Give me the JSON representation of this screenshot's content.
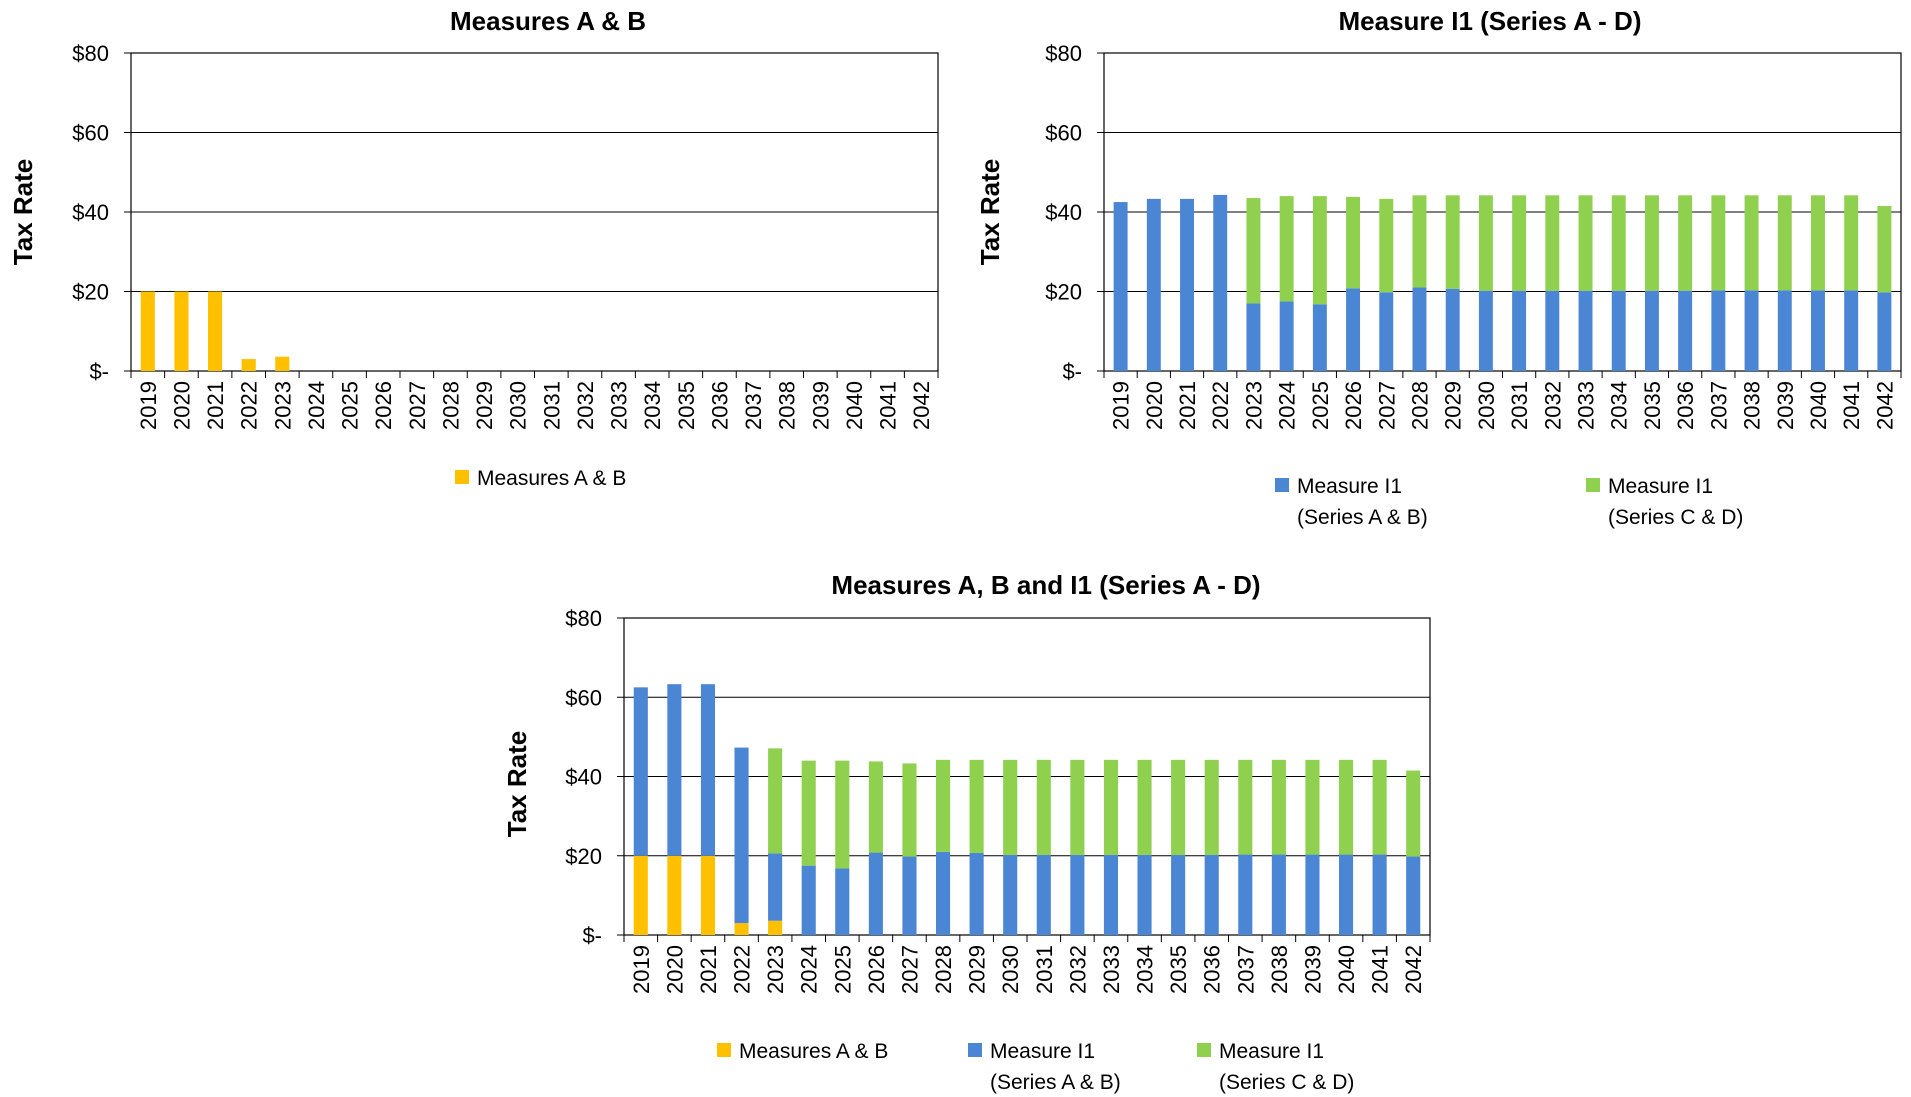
{
  "colors": {
    "measures_ab": "#FFC000",
    "i1_ab": "#4A86D4",
    "i1_cd": "#8FD14F"
  },
  "chart_data": [
    {
      "type": "bar",
      "title": "Measures A & B",
      "ylabel": "Tax Rate",
      "yticks": [
        "$80",
        "$60",
        "$40",
        "$20",
        "$-"
      ],
      "ylim": [
        0,
        80
      ],
      "categories": [
        "2019",
        "2020",
        "2021",
        "2022",
        "2023",
        "2024",
        "2025",
        "2026",
        "2027",
        "2028",
        "2029",
        "2030",
        "2031",
        "2032",
        "2033",
        "2034",
        "2035",
        "2036",
        "2037",
        "2038",
        "2039",
        "2040",
        "2041",
        "2042"
      ],
      "series": [
        {
          "name": "Measures A & B",
          "color_key": "measures_ab",
          "values": [
            20,
            20,
            20,
            3,
            3.6,
            0,
            0,
            0,
            0,
            0,
            0,
            0,
            0,
            0,
            0,
            0,
            0,
            0,
            0,
            0,
            0,
            0,
            0,
            0
          ]
        }
      ],
      "legend": {
        "position": "bottom",
        "entries": [
          {
            "line1": "Measures A & B",
            "line2": ""
          }
        ]
      }
    },
    {
      "type": "bar",
      "stacked": true,
      "title": "Measure I1 (Series A - D)",
      "ylabel": "Tax Rate",
      "yticks": [
        "$80",
        "$60",
        "$40",
        "$20",
        "$-"
      ],
      "ylim": [
        0,
        80
      ],
      "categories": [
        "2019",
        "2020",
        "2021",
        "2022",
        "2023",
        "2024",
        "2025",
        "2026",
        "2027",
        "2028",
        "2029",
        "2030",
        "2031",
        "2032",
        "2033",
        "2034",
        "2035",
        "2036",
        "2037",
        "2038",
        "2039",
        "2040",
        "2041",
        "2042"
      ],
      "series": [
        {
          "name": "Measure I1 (Series A & B)",
          "color_key": "i1_ab",
          "values": [
            42.5,
            43.3,
            43.3,
            44.3,
            17,
            17.5,
            16.8,
            20.8,
            19.8,
            21,
            20.7,
            20.2,
            20.2,
            20.2,
            20.2,
            20.2,
            20.2,
            20.2,
            20.3,
            20.3,
            20.3,
            20.3,
            20.3,
            19.8
          ]
        },
        {
          "name": "Measure I1 (Series C & D)",
          "color_key": "i1_cd",
          "values": [
            0,
            0,
            0,
            0,
            26.5,
            26.5,
            27.2,
            23,
            23.5,
            23.2,
            23.5,
            24,
            24,
            24,
            24,
            24,
            24,
            24,
            23.9,
            23.9,
            23.9,
            23.9,
            23.9,
            21.7
          ]
        }
      ],
      "legend": {
        "position": "bottom",
        "entries": [
          {
            "line1": "Measure I1",
            "line2": "(Series A & B)"
          },
          {
            "line1": "Measure I1",
            "line2": "(Series C & D)"
          }
        ]
      }
    },
    {
      "type": "bar",
      "stacked": true,
      "title": "Measures A, B and I1 (Series A - D)",
      "ylabel": "Tax Rate",
      "yticks": [
        "$80",
        "$60",
        "$40",
        "$20",
        "$-"
      ],
      "ylim": [
        0,
        80
      ],
      "categories": [
        "2019",
        "2020",
        "2021",
        "2022",
        "2023",
        "2024",
        "2025",
        "2026",
        "2027",
        "2028",
        "2029",
        "2030",
        "2031",
        "2032",
        "2033",
        "2034",
        "2035",
        "2036",
        "2037",
        "2038",
        "2039",
        "2040",
        "2041",
        "2042"
      ],
      "series": [
        {
          "name": "Measures A & B",
          "color_key": "measures_ab",
          "values": [
            20,
            20,
            20,
            3,
            3.6,
            0,
            0,
            0,
            0,
            0,
            0,
            0,
            0,
            0,
            0,
            0,
            0,
            0,
            0,
            0,
            0,
            0,
            0,
            0
          ]
        },
        {
          "name": "Measure I1 (Series A & B)",
          "color_key": "i1_ab",
          "values": [
            42.5,
            43.3,
            43.3,
            44.3,
            17,
            17.5,
            16.8,
            20.8,
            19.8,
            21,
            20.7,
            20.2,
            20.2,
            20.2,
            20.2,
            20.2,
            20.2,
            20.2,
            20.3,
            20.3,
            20.3,
            20.3,
            20.3,
            19.8
          ]
        },
        {
          "name": "Measure I1 (Series C & D)",
          "color_key": "i1_cd",
          "values": [
            0,
            0,
            0,
            0,
            26.5,
            26.5,
            27.2,
            23,
            23.5,
            23.2,
            23.5,
            24,
            24,
            24,
            24,
            24,
            24,
            24,
            23.9,
            23.9,
            23.9,
            23.9,
            23.9,
            21.7
          ]
        }
      ],
      "legend": {
        "position": "bottom",
        "entries": [
          {
            "line1": "Measures A & B",
            "line2": ""
          },
          {
            "line1": "Measure I1",
            "line2": "(Series A & B)"
          },
          {
            "line1": "Measure I1",
            "line2": "(Series C & D)"
          }
        ]
      }
    }
  ]
}
